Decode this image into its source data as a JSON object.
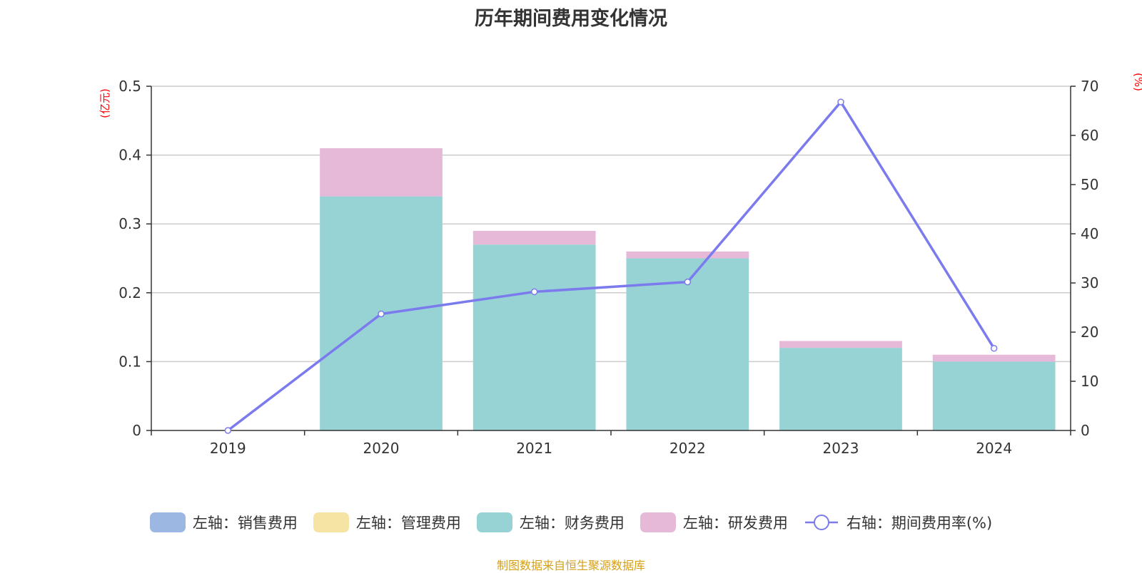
{
  "chart_data": {
    "type": "bar",
    "title": "历年期间费用变化情况",
    "categories": [
      "2019",
      "2020",
      "2021",
      "2022",
      "2023",
      "2024"
    ],
    "stacked": true,
    "y_left": {
      "unit": "(亿元)",
      "ylim": [
        0,
        0.5
      ],
      "ticks": [
        "0",
        "0.1",
        "0.2",
        "0.3",
        "0.4",
        "0.5"
      ]
    },
    "y_right": {
      "unit": "(%)",
      "ylim": [
        0,
        70
      ],
      "ticks": [
        "0",
        "10",
        "20",
        "30",
        "40",
        "50",
        "60",
        "70"
      ]
    },
    "series": [
      {
        "name": "左轴：销售费用",
        "type": "bar",
        "axis": "left",
        "color": "#9bb7e2",
        "values": [
          0,
          0,
          0,
          0,
          0,
          0
        ]
      },
      {
        "name": "左轴：管理费用",
        "type": "bar",
        "axis": "left",
        "color": "#f5e4a3",
        "values": [
          0,
          0,
          0,
          0,
          0,
          0
        ]
      },
      {
        "name": "左轴：财务费用",
        "type": "bar",
        "axis": "left",
        "color": "#97d3d5",
        "values": [
          0,
          0.34,
          0.27,
          0.25,
          0.12,
          0.1
        ]
      },
      {
        "name": "左轴：研发费用",
        "type": "bar",
        "axis": "left",
        "color": "#e6b9d9",
        "values": [
          0,
          0.07,
          0.02,
          0.01,
          0.01,
          0.01
        ]
      },
      {
        "name": "右轴：期间费用率(%)",
        "type": "line",
        "axis": "right",
        "color": "#7b7bee",
        "values": [
          0,
          23.7,
          28.2,
          30.2,
          66.8,
          16.7
        ]
      }
    ],
    "grid": true,
    "legend_position": "bottom"
  },
  "source_note": "制图数据来自恒生聚源数据库"
}
